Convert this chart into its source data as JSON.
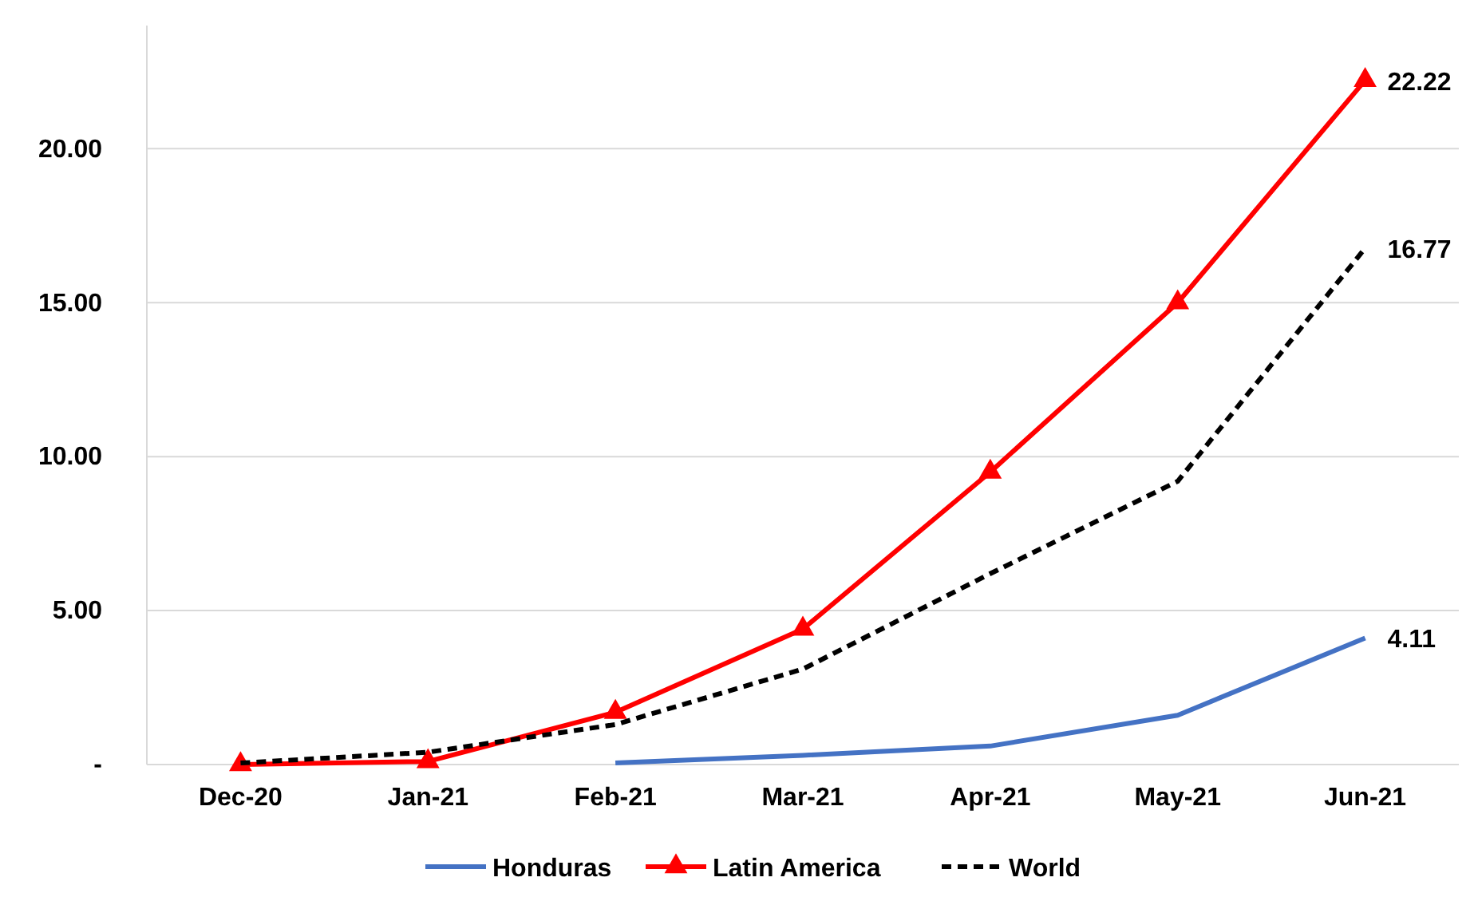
{
  "chart_data": {
    "type": "line",
    "categories": [
      "Dec-20",
      "Jan-21",
      "Feb-21",
      "Mar-21",
      "Apr-21",
      "May-21",
      "Jun-21"
    ],
    "series": [
      {
        "name": "Honduras",
        "color": "#4472c4",
        "marker": "none",
        "line_style": "solid",
        "values": [
          null,
          null,
          0.05,
          0.3,
          0.6,
          1.6,
          4.11
        ],
        "value_labels": [
          null,
          null,
          null,
          null,
          null,
          null,
          "4.11"
        ]
      },
      {
        "name": "Latin America",
        "color": "#ff0000",
        "marker": "triangle",
        "line_style": "solid",
        "values": [
          0,
          0.1,
          1.7,
          4.4,
          9.5,
          15.0,
          22.22
        ],
        "value_labels": [
          null,
          null,
          null,
          null,
          null,
          null,
          "22.22"
        ]
      },
      {
        "name": "World",
        "color": "#000000",
        "marker": "none",
        "line_style": "dashed",
        "values": [
          0.05,
          0.4,
          1.3,
          3.1,
          6.2,
          9.2,
          16.77
        ],
        "value_labels": [
          null,
          null,
          null,
          null,
          null,
          null,
          "16.77"
        ]
      }
    ],
    "ylim": [
      0,
      24
    ],
    "yticks": [
      {
        "value": 0,
        "label": "-"
      },
      {
        "value": 5,
        "label": "5.00"
      },
      {
        "value": 10,
        "label": "10.00"
      },
      {
        "value": 15,
        "label": "15.00"
      },
      {
        "value": 20,
        "label": "20.00"
      }
    ],
    "grid": "y",
    "legend": "bottom"
  }
}
